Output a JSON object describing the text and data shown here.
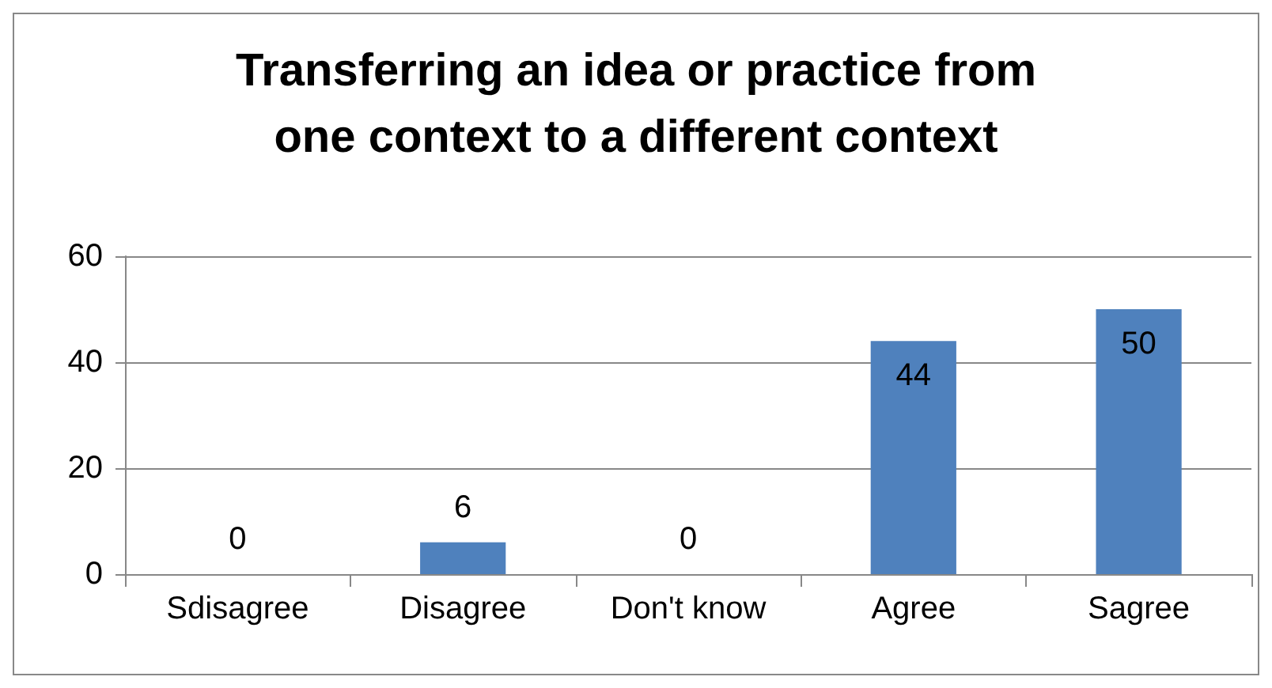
{
  "chart_data": {
    "type": "bar",
    "title": "Transferring an idea or practice from\none context to a different context",
    "categories": [
      "Sdisagree",
      "Disagree",
      "Don't know",
      "Agree",
      "Sagree"
    ],
    "values": [
      0,
      6,
      0,
      44,
      50
    ],
    "color": "#4f81bd",
    "ylim": [
      0,
      60
    ],
    "yticks": [
      0,
      20,
      40,
      60
    ],
    "grid": "y",
    "data_labels": true
  }
}
